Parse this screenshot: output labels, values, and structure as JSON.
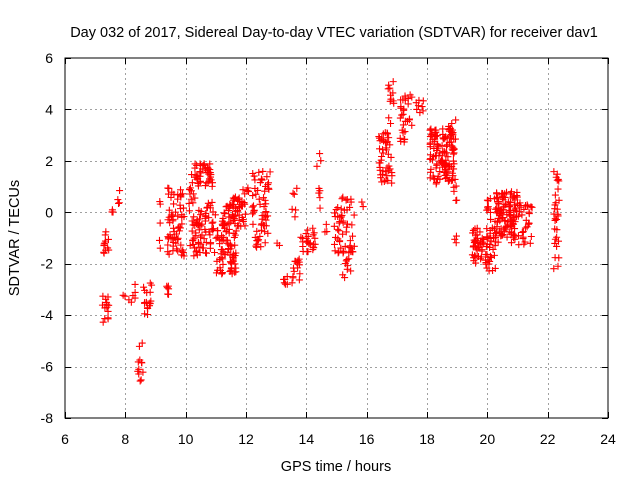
{
  "chart_data": {
    "type": "scatter",
    "title": "Day 032 of 2017, Sidereal Day-to-day VTEC variation (SDTVAR) for receiver dav1",
    "xlabel": "GPS time / hours",
    "ylabel": "SDTVAR / TECUs",
    "xlim": [
      6,
      24
    ],
    "ylim": [
      -8,
      6
    ],
    "x_ticks": [
      6,
      8,
      10,
      12,
      14,
      16,
      18,
      20,
      22,
      24
    ],
    "y_ticks": [
      -8,
      -6,
      -4,
      -2,
      0,
      2,
      4,
      6
    ],
    "grid": true,
    "marker": "plus",
    "colors": {
      "marker": "#ff0000",
      "axis": "#000000",
      "grid": "#a0a0a0"
    },
    "clusters": [
      {
        "x": [
          7.25,
          7.45
        ],
        "y": [
          -1.6,
          -0.5
        ],
        "n": 12
      },
      {
        "x": [
          7.2,
          7.45
        ],
        "y": [
          -4.4,
          -3.1
        ],
        "n": 14
      },
      {
        "x": [
          7.5,
          7.6
        ],
        "y": [
          -0.1,
          0.2
        ],
        "n": 3
      },
      {
        "x": [
          7.7,
          7.85
        ],
        "y": [
          0.2,
          0.9
        ],
        "n": 4
      },
      {
        "x": [
          7.9,
          8.0
        ],
        "y": [
          -3.3,
          -3.1
        ],
        "n": 2
      },
      {
        "x": [
          8.1,
          8.35
        ],
        "y": [
          -3.6,
          -2.5
        ],
        "n": 6
      },
      {
        "x": [
          8.4,
          8.6
        ],
        "y": [
          -6.6,
          -5.0
        ],
        "n": 12
      },
      {
        "x": [
          8.6,
          9.0
        ],
        "y": [
          -4.0,
          -2.7
        ],
        "n": 18
      },
      {
        "x": [
          9.0,
          9.2
        ],
        "y": [
          -1.4,
          0.8
        ],
        "n": 5
      },
      {
        "x": [
          9.35,
          9.5
        ],
        "y": [
          -3.3,
          -2.8
        ],
        "n": 6
      },
      {
        "x": [
          9.4,
          9.95
        ],
        "y": [
          -1.8,
          1.0
        ],
        "n": 65
      },
      {
        "x": [
          10.1,
          10.4
        ],
        "y": [
          -1.8,
          1.7
        ],
        "n": 35
      },
      {
        "x": [
          10.3,
          10.9
        ],
        "y": [
          1.0,
          1.9
        ],
        "n": 40
      },
      {
        "x": [
          10.4,
          11.0
        ],
        "y": [
          -1.6,
          0.4
        ],
        "n": 50
      },
      {
        "x": [
          11.0,
          11.7
        ],
        "y": [
          -2.4,
          -0.5
        ],
        "n": 70
      },
      {
        "x": [
          11.2,
          12.0
        ],
        "y": [
          -0.6,
          0.6
        ],
        "n": 60
      },
      {
        "x": [
          11.9,
          12.1
        ],
        "y": [
          0.6,
          1.0
        ],
        "n": 6
      },
      {
        "x": [
          12.2,
          12.8
        ],
        "y": [
          -1.3,
          1.6
        ],
        "n": 55
      },
      {
        "x": [
          12.3,
          12.5
        ],
        "y": [
          -1.4,
          -0.9
        ],
        "n": 6
      },
      {
        "x": [
          13.0,
          13.2
        ],
        "y": [
          -1.3,
          -1.1
        ],
        "n": 2
      },
      {
        "x": [
          13.2,
          13.4
        ],
        "y": [
          -3.0,
          -2.5
        ],
        "n": 6
      },
      {
        "x": [
          13.5,
          13.8
        ],
        "y": [
          -2.9,
          -1.8
        ],
        "n": 15
      },
      {
        "x": [
          13.5,
          13.7
        ],
        "y": [
          -0.3,
          1.0
        ],
        "n": 6
      },
      {
        "x": [
          13.8,
          14.3
        ],
        "y": [
          -1.6,
          -0.6
        ],
        "n": 25
      },
      {
        "x": [
          14.3,
          14.5
        ],
        "y": [
          0.0,
          2.4
        ],
        "n": 8
      },
      {
        "x": [
          14.6,
          14.8
        ],
        "y": [
          -0.8,
          -0.4
        ],
        "n": 3
      },
      {
        "x": [
          14.9,
          15.6
        ],
        "y": [
          -1.6,
          0.2
        ],
        "n": 45
      },
      {
        "x": [
          15.2,
          15.5
        ],
        "y": [
          -2.6,
          -1.5
        ],
        "n": 12
      },
      {
        "x": [
          15.0,
          15.5
        ],
        "y": [
          0.3,
          1.0
        ],
        "n": 6
      },
      {
        "x": [
          15.8,
          15.9
        ],
        "y": [
          0.2,
          0.5
        ],
        "n": 2
      },
      {
        "x": [
          16.4,
          16.85
        ],
        "y": [
          1.1,
          3.1
        ],
        "n": 45
      },
      {
        "x": [
          16.7,
          16.9
        ],
        "y": [
          3.4,
          5.1
        ],
        "n": 12
      },
      {
        "x": [
          17.1,
          17.5
        ],
        "y": [
          2.7,
          4.6
        ],
        "n": 30
      },
      {
        "x": [
          17.6,
          17.9
        ],
        "y": [
          3.8,
          4.4
        ],
        "n": 8
      },
      {
        "x": [
          18.1,
          18.9
        ],
        "y": [
          1.1,
          3.3
        ],
        "n": 120
      },
      {
        "x": [
          18.7,
          19.0
        ],
        "y": [
          2.8,
          3.6
        ],
        "n": 10
      },
      {
        "x": [
          18.8,
          19.0
        ],
        "y": [
          0.3,
          1.6
        ],
        "n": 8
      },
      {
        "x": [
          18.9,
          19.0
        ],
        "y": [
          -1.7,
          -0.4
        ],
        "n": 3
      },
      {
        "x": [
          19.5,
          19.9
        ],
        "y": [
          -2.0,
          -0.6
        ],
        "n": 40
      },
      {
        "x": [
          19.9,
          20.3
        ],
        "y": [
          -2.3,
          0.6
        ],
        "n": 50
      },
      {
        "x": [
          20.3,
          21.0
        ],
        "y": [
          -1.2,
          0.8
        ],
        "n": 110
      },
      {
        "x": [
          21.0,
          21.5
        ],
        "y": [
          -1.4,
          0.4
        ],
        "n": 30
      },
      {
        "x": [
          22.2,
          22.4
        ],
        "y": [
          -2.2,
          1.7
        ],
        "n": 30
      }
    ]
  }
}
